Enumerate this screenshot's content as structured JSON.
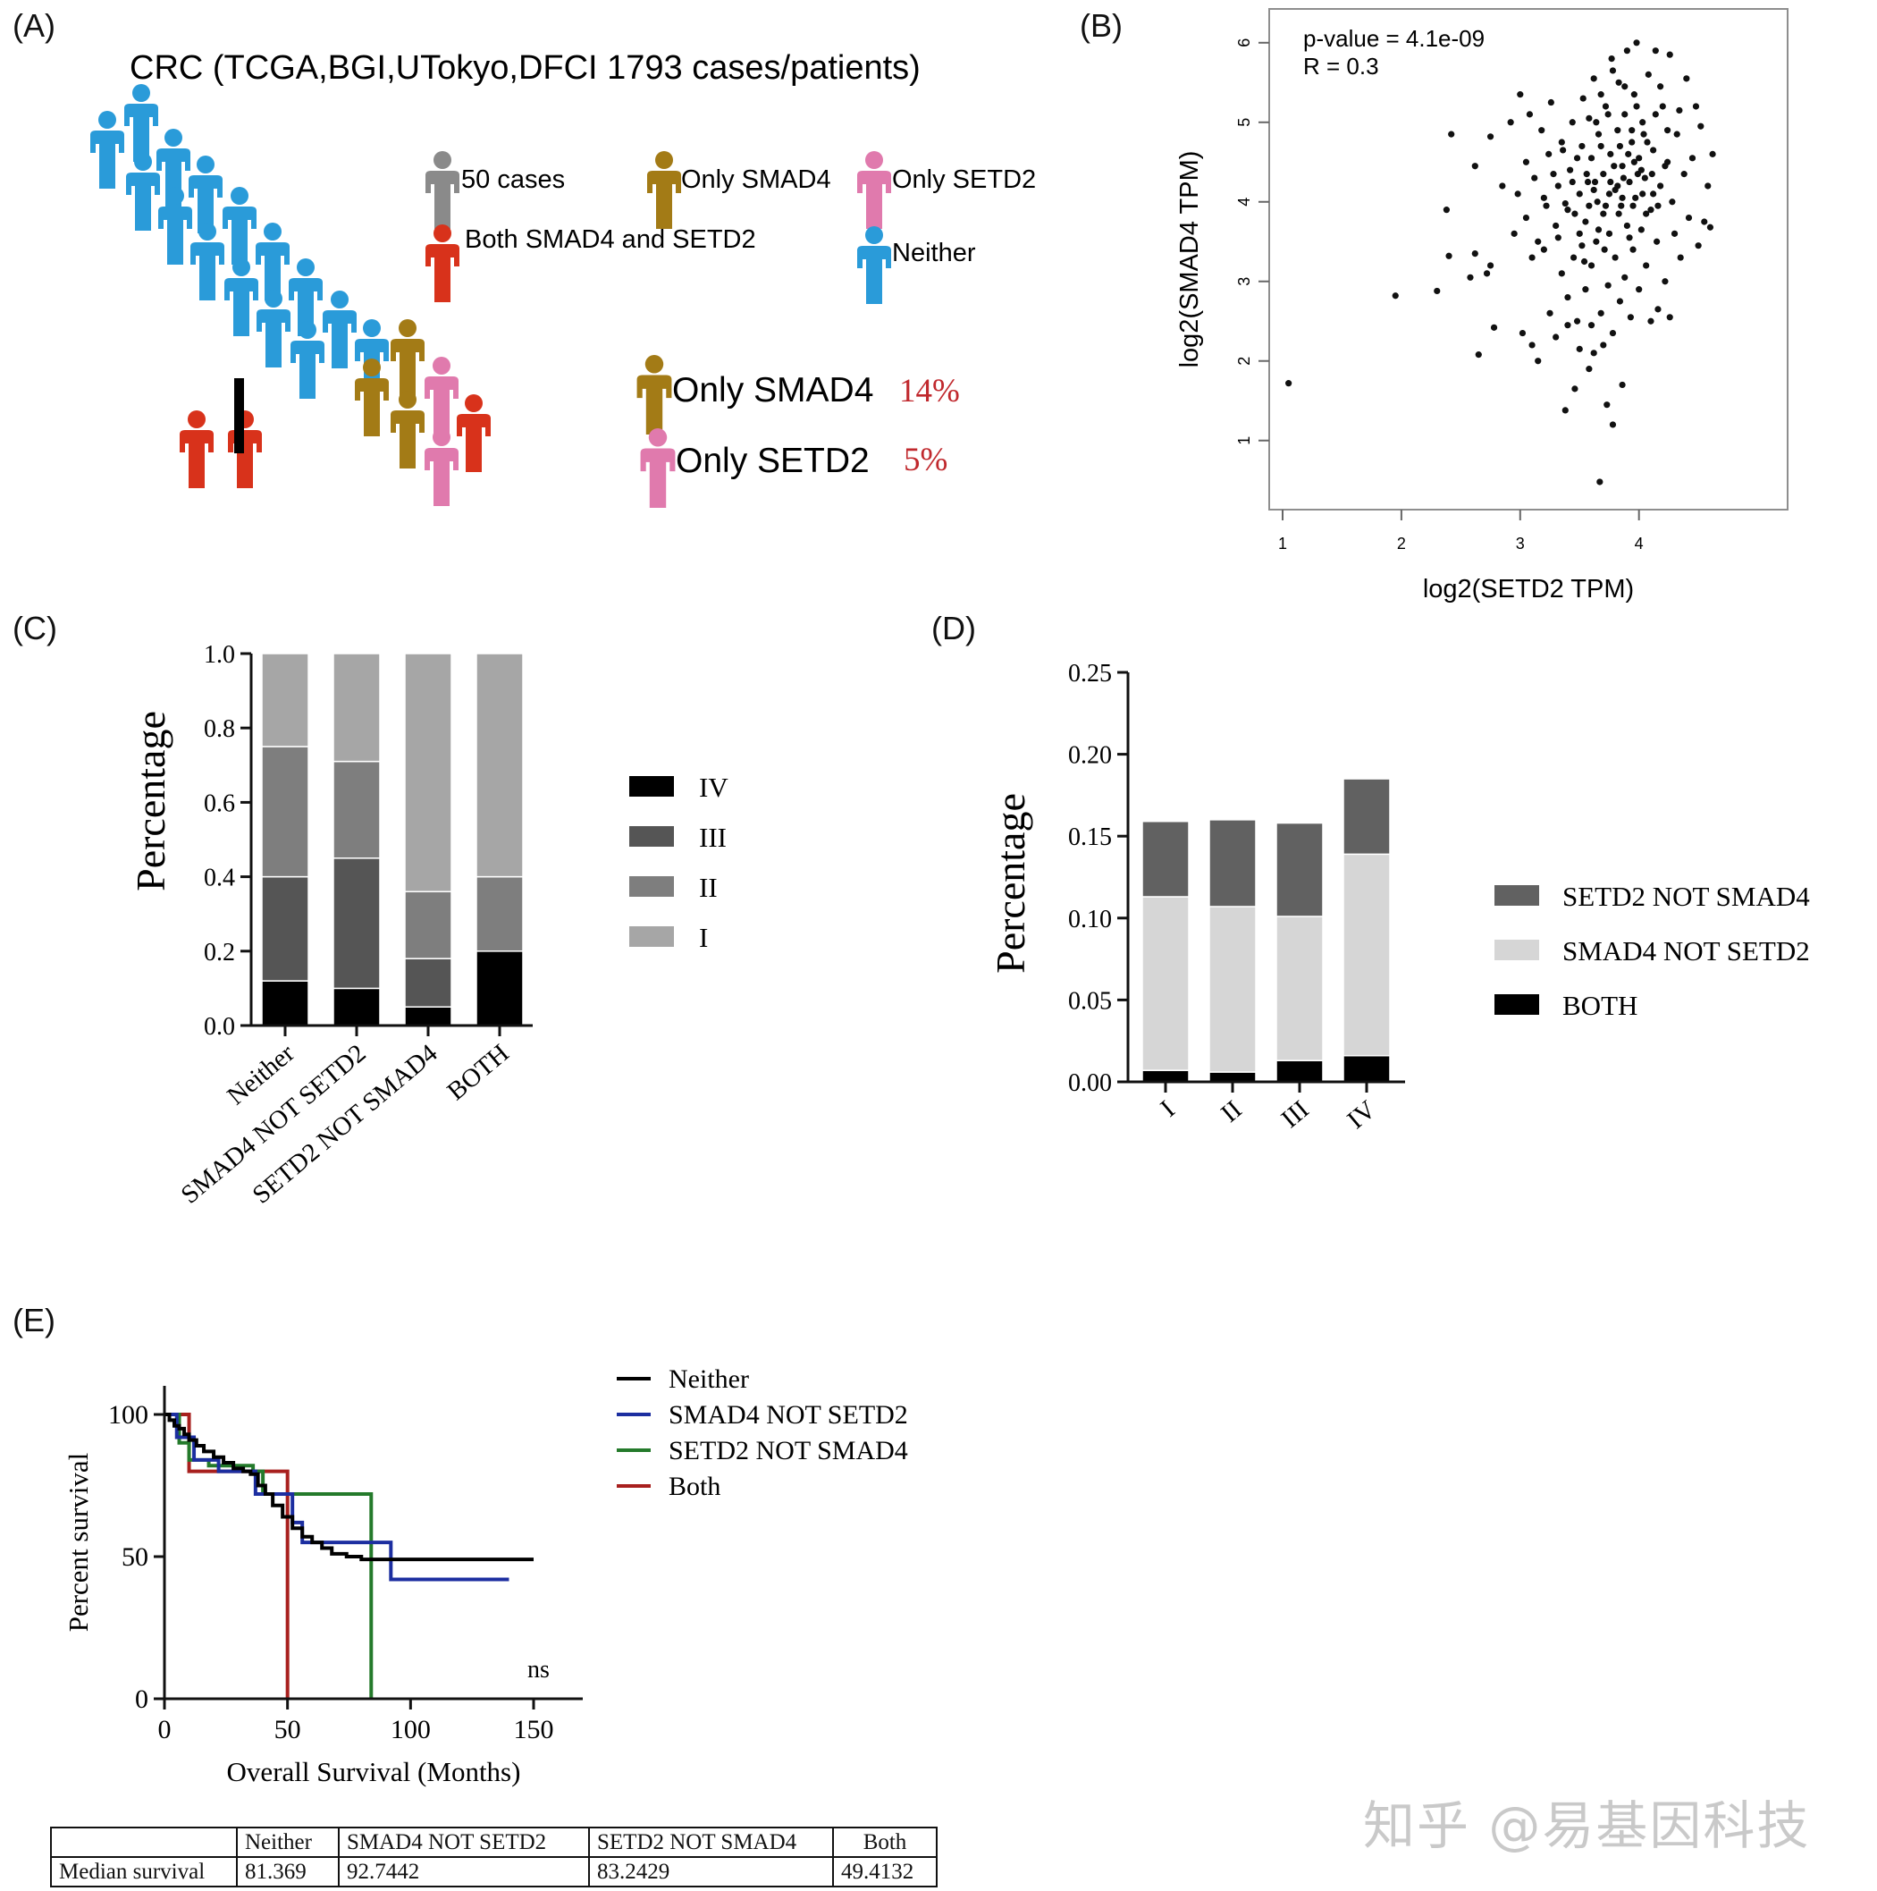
{
  "panels": {
    "a": "(A)",
    "b": "(B)",
    "c": "(C)",
    "d": "(D)",
    "e": "(E)"
  },
  "colors": {
    "neither": "#2a9bd9",
    "smad4": "#a37b16",
    "setd2": "#e07aad",
    "both": "#d8321b",
    "fifty": "#8a8a8a",
    "pct": "#c0282d"
  },
  "panelA": {
    "title": "CRC (TCGA,BGI,UTokyo,DFCI 1793 cases/patients)",
    "legend": {
      "fifty": "50 cases",
      "only_smad4": "Only SMAD4",
      "only_setd2": "Only SETD2",
      "both": "Both SMAD4 and SETD2",
      "neither": "Neither"
    },
    "summary": [
      {
        "label": "Only SMAD4",
        "pct": "14%",
        "icon": "smad4"
      },
      {
        "label": "Only SETD2",
        "pct": "5%",
        "icon": "setd2"
      }
    ]
  },
  "chart_data": [
    {
      "id": "B",
      "type": "scatter",
      "xlabel": "log2(SETD2 TPM)",
      "ylabel": "log2(SMAD4 TPM)",
      "annotation": [
        "p-value = 4.1e-09",
        "R = 0.3"
      ],
      "xlim": [
        1,
        4.8
      ],
      "ylim": [
        0.3,
        6.2
      ],
      "xticks": [
        "1",
        "2",
        "3",
        "4"
      ],
      "yticks": [
        "1",
        "2",
        "3",
        "4",
        "5",
        "6"
      ],
      "points": [
        [
          1.05,
          1.72
        ],
        [
          1.95,
          2.82
        ],
        [
          2.3,
          2.88
        ],
        [
          2.4,
          3.32
        ],
        [
          2.38,
          3.9
        ],
        [
          2.42,
          4.85
        ],
        [
          2.58,
          3.05
        ],
        [
          2.62,
          3.35
        ],
        [
          2.62,
          4.45
        ],
        [
          2.65,
          2.08
        ],
        [
          2.72,
          3.1
        ],
        [
          2.75,
          3.2
        ],
        [
          2.75,
          4.82
        ],
        [
          2.78,
          2.42
        ],
        [
          2.85,
          4.2
        ],
        [
          2.92,
          5.0
        ],
        [
          2.95,
          3.6
        ],
        [
          2.98,
          4.1
        ],
        [
          3.0,
          5.35
        ],
        [
          3.02,
          2.35
        ],
        [
          3.05,
          3.8
        ],
        [
          3.05,
          4.5
        ],
        [
          3.08,
          5.1
        ],
        [
          3.1,
          2.2
        ],
        [
          3.12,
          4.3
        ],
        [
          3.15,
          3.5
        ],
        [
          3.15,
          2.0
        ],
        [
          3.18,
          4.9
        ],
        [
          3.2,
          3.4
        ],
        [
          3.22,
          3.95
        ],
        [
          3.24,
          4.6
        ],
        [
          3.25,
          2.6
        ],
        [
          3.26,
          5.25
        ],
        [
          3.3,
          3.7
        ],
        [
          3.3,
          2.3
        ],
        [
          3.32,
          4.2
        ],
        [
          3.35,
          3.1
        ],
        [
          3.35,
          4.75
        ],
        [
          3.38,
          1.38
        ],
        [
          3.4,
          2.8
        ],
        [
          3.4,
          3.9
        ],
        [
          3.42,
          4.4
        ],
        [
          3.44,
          5.0
        ],
        [
          3.45,
          3.3
        ],
        [
          3.46,
          1.65
        ],
        [
          3.48,
          2.5
        ],
        [
          3.5,
          3.6
        ],
        [
          3.5,
          4.1
        ],
        [
          3.52,
          4.7
        ],
        [
          3.53,
          5.3
        ],
        [
          3.55,
          2.9
        ],
        [
          3.55,
          3.75
        ],
        [
          3.57,
          4.25
        ],
        [
          3.58,
          1.9
        ],
        [
          3.6,
          3.2
        ],
        [
          3.6,
          4.55
        ],
        [
          3.62,
          2.1
        ],
        [
          3.62,
          5.55
        ],
        [
          3.64,
          3.5
        ],
        [
          3.65,
          4.0
        ],
        [
          3.66,
          4.85
        ],
        [
          3.67,
          0.48
        ],
        [
          3.68,
          2.6
        ],
        [
          3.7,
          3.85
        ],
        [
          3.7,
          4.35
        ],
        [
          3.72,
          5.2
        ],
        [
          3.73,
          1.45
        ],
        [
          3.74,
          2.95
        ],
        [
          3.75,
          3.6
        ],
        [
          3.76,
          4.6
        ],
        [
          3.77,
          5.8
        ],
        [
          3.78,
          1.2
        ],
        [
          3.78,
          2.35
        ],
        [
          3.8,
          3.3
        ],
        [
          3.8,
          4.15
        ],
        [
          3.82,
          4.9
        ],
        [
          3.83,
          5.5
        ],
        [
          3.84,
          2.75
        ],
        [
          3.85,
          3.95
        ],
        [
          3.86,
          1.7
        ],
        [
          3.86,
          4.45
        ],
        [
          3.88,
          3.05
        ],
        [
          3.88,
          5.1
        ],
        [
          3.9,
          3.7
        ],
        [
          3.9,
          5.9
        ],
        [
          3.92,
          4.25
        ],
        [
          3.93,
          2.55
        ],
        [
          3.94,
          4.75
        ],
        [
          3.95,
          3.4
        ],
        [
          3.96,
          5.35
        ],
        [
          3.97,
          4.05
        ],
        [
          3.98,
          6.0
        ],
        [
          4.0,
          2.9
        ],
        [
          4.0,
          4.55
        ],
        [
          4.02,
          3.65
        ],
        [
          4.03,
          5.0
        ],
        [
          4.05,
          4.3
        ],
        [
          4.06,
          3.2
        ],
        [
          4.08,
          5.6
        ],
        [
          4.1,
          3.9
        ],
        [
          4.1,
          2.5
        ],
        [
          4.12,
          4.65
        ],
        [
          4.14,
          5.9
        ],
        [
          4.15,
          3.5
        ],
        [
          4.18,
          4.2
        ],
        [
          4.2,
          5.2
        ],
        [
          4.22,
          3.0
        ],
        [
          4.24,
          4.5
        ],
        [
          4.26,
          5.85
        ],
        [
          4.28,
          4.0
        ],
        [
          4.3,
          3.6
        ],
        [
          4.32,
          4.85
        ],
        [
          4.35,
          3.3
        ],
        [
          4.38,
          4.35
        ],
        [
          4.4,
          5.55
        ],
        [
          4.42,
          3.8
        ],
        [
          4.45,
          4.55
        ],
        [
          4.48,
          5.2
        ],
        [
          4.5,
          3.45
        ],
        [
          4.52,
          4.95
        ],
        [
          4.55,
          3.75
        ],
        [
          4.58,
          4.2
        ],
        [
          4.6,
          3.68
        ],
        [
          4.62,
          4.6
        ],
        [
          3.32,
          3.55
        ],
        [
          3.38,
          3.98
        ],
        [
          3.44,
          4.25
        ],
        [
          3.48,
          4.55
        ],
        [
          3.54,
          3.25
        ],
        [
          3.58,
          3.95
        ],
        [
          3.63,
          4.25
        ],
        [
          3.68,
          4.7
        ],
        [
          3.71,
          3.4
        ],
        [
          3.75,
          4.1
        ],
        [
          3.79,
          4.45
        ],
        [
          3.83,
          3.85
        ],
        [
          3.87,
          4.3
        ],
        [
          3.91,
          4.6
        ],
        [
          3.95,
          3.95
        ],
        [
          3.99,
          4.35
        ],
        [
          4.03,
          4.1
        ],
        [
          4.07,
          4.75
        ],
        [
          4.11,
          4.35
        ],
        [
          4.16,
          3.95
        ],
        [
          3.36,
          4.65
        ],
        [
          3.46,
          3.85
        ],
        [
          3.56,
          4.35
        ],
        [
          3.66,
          3.65
        ],
        [
          3.76,
          4.25
        ],
        [
          3.86,
          4.05
        ],
        [
          3.96,
          4.5
        ],
        [
          4.06,
          3.85
        ],
        [
          3.2,
          4.05
        ],
        [
          3.28,
          4.35
        ],
        [
          3.52,
          3.45
        ],
        [
          3.62,
          4.15
        ],
        [
          3.72,
          3.95
        ],
        [
          3.82,
          4.2
        ],
        [
          3.92,
          3.55
        ],
        [
          4.02,
          4.4
        ],
        [
          4.12,
          4.1
        ],
        [
          4.22,
          4.45
        ],
        [
          3.1,
          3.3
        ],
        [
          3.7,
          2.2
        ],
        [
          3.6,
          2.45
        ],
        [
          3.5,
          2.15
        ],
        [
          3.4,
          2.45
        ],
        [
          4.16,
          2.65
        ],
        [
          4.26,
          2.55
        ],
        [
          3.58,
          5.05
        ],
        [
          3.68,
          5.35
        ],
        [
          3.78,
          5.65
        ],
        [
          3.88,
          5.45
        ],
        [
          3.98,
          5.2
        ],
        [
          4.18,
          5.45
        ],
        [
          3.64,
          5.0
        ],
        [
          3.74,
          5.1
        ],
        [
          3.84,
          4.7
        ],
        [
          3.94,
          4.9
        ],
        [
          4.04,
          4.85
        ],
        [
          4.14,
          5.1
        ],
        [
          4.24,
          4.9
        ],
        [
          4.34,
          5.15
        ]
      ]
    },
    {
      "id": "C",
      "type": "bar",
      "stacked": true,
      "ylabel": "Percentage",
      "ylim": [
        0,
        1.0
      ],
      "yticks": [
        "0.0",
        "0.2",
        "0.4",
        "0.6",
        "0.8",
        "1.0"
      ],
      "categories": [
        "Neither",
        "SMAD4 NOT SETD2",
        "SETD2 NOT SMAD4",
        "BOTH"
      ],
      "series": [
        {
          "name": "IV",
          "color": "#000000",
          "values": [
            0.12,
            0.1,
            0.05,
            0.2
          ]
        },
        {
          "name": "III",
          "color": "#555555",
          "values": [
            0.28,
            0.35,
            0.13,
            0.0
          ]
        },
        {
          "name": "II",
          "color": "#7e7e7e",
          "values": [
            0.35,
            0.26,
            0.18,
            0.2
          ]
        },
        {
          "name": "I",
          "color": "#a6a6a6",
          "values": [
            0.25,
            0.29,
            0.64,
            0.6
          ]
        }
      ],
      "legend_order": [
        "IV",
        "III",
        "II",
        "I"
      ]
    },
    {
      "id": "D",
      "type": "bar",
      "stacked": true,
      "ylabel": "Percentage",
      "ylim": [
        0,
        0.25
      ],
      "yticks": [
        "0.00",
        "0.05",
        "0.10",
        "0.15",
        "0.20",
        "0.25"
      ],
      "categories": [
        "I",
        "II",
        "III",
        "IV"
      ],
      "series": [
        {
          "name": "BOTH",
          "color": "#000000",
          "values": [
            0.007,
            0.006,
            0.013,
            0.016
          ]
        },
        {
          "name": "SMAD4 NOT SETD2",
          "color": "#d6d6d6",
          "values": [
            0.106,
            0.101,
            0.088,
            0.123
          ]
        },
        {
          "name": "SETD2 NOT SMAD4",
          "color": "#616161",
          "values": [
            0.046,
            0.053,
            0.057,
            0.046
          ]
        }
      ],
      "legend_order": [
        "SETD2 NOT SMAD4",
        "SMAD4 NOT SETD2",
        "BOTH"
      ]
    },
    {
      "id": "E",
      "type": "line",
      "kind": "kaplan-meier",
      "xlabel": "Overall Survival (Months)",
      "ylabel": "Percent survival",
      "xlim": [
        0,
        170
      ],
      "ylim": [
        0,
        105
      ],
      "xticks": [
        "0",
        "50",
        "100",
        "150"
      ],
      "yticks": [
        "0",
        "50",
        "100"
      ],
      "annotation": "ns",
      "series": [
        {
          "name": "Neither",
          "color": "#000000",
          "points": [
            [
              0,
              100
            ],
            [
              2,
              98
            ],
            [
              4,
              96
            ],
            [
              6,
              95
            ],
            [
              8,
              93
            ],
            [
              10,
              91
            ],
            [
              13,
              89
            ],
            [
              16,
              87
            ],
            [
              20,
              85
            ],
            [
              24,
              83
            ],
            [
              28,
              81
            ],
            [
              32,
              80
            ],
            [
              35,
              79
            ],
            [
              38,
              75
            ],
            [
              41,
              72
            ],
            [
              44,
              68
            ],
            [
              48,
              64
            ],
            [
              52,
              60
            ],
            [
              56,
              57
            ],
            [
              60,
              55
            ],
            [
              64,
              53
            ],
            [
              68,
              51
            ],
            [
              74,
              50
            ],
            [
              80,
              49
            ],
            [
              150,
              49
            ]
          ]
        },
        {
          "name": "SMAD4 NOT SETD2",
          "color": "#1c2ea0",
          "points": [
            [
              0,
              100
            ],
            [
              5,
              92
            ],
            [
              12,
              84
            ],
            [
              22,
              80
            ],
            [
              36,
              80
            ],
            [
              37,
              72
            ],
            [
              50,
              72
            ],
            [
              52,
              62
            ],
            [
              56,
              55
            ],
            [
              70,
              55
            ],
            [
              88,
              55
            ],
            [
              92,
              42
            ],
            [
              140,
              42
            ]
          ]
        },
        {
          "name": "SETD2 NOT SMAD4",
          "color": "#247a2b",
          "points": [
            [
              0,
              100
            ],
            [
              6,
              90
            ],
            [
              10,
              84
            ],
            [
              18,
              82
            ],
            [
              36,
              80
            ],
            [
              40,
              72
            ],
            [
              84,
              72
            ],
            [
              84,
              0
            ]
          ]
        },
        {
          "name": "Both",
          "color": "#a8201e",
          "points": [
            [
              0,
              100
            ],
            [
              10,
              100
            ],
            [
              10,
              80
            ],
            [
              50,
              80
            ],
            [
              50,
              0
            ]
          ]
        }
      ],
      "table": {
        "header": [
          "",
          "Neither",
          "SMAD4 NOT SETD2",
          "SETD2 NOT SMAD4",
          "Both"
        ],
        "row": [
          "Median survival",
          "81.369",
          "92.7442",
          "83.2429",
          "49.4132"
        ]
      }
    }
  ],
  "watermark": "知乎 @易基因科技"
}
